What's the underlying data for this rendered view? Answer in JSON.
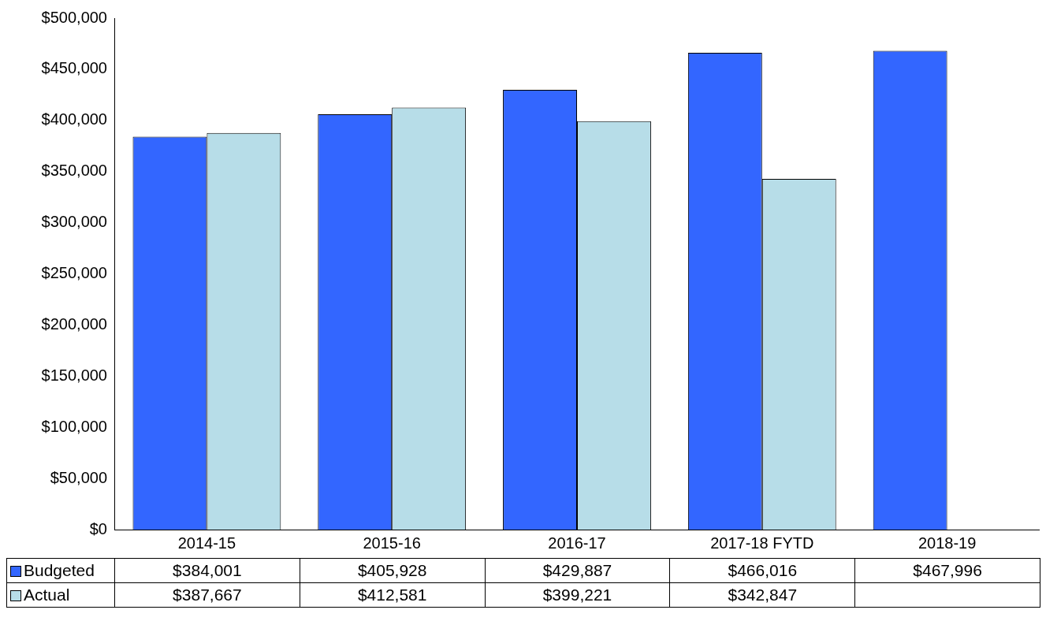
{
  "chart_data": {
    "type": "bar",
    "categories": [
      "2014-15",
      "2015-16",
      "2016-17",
      "2017-18 FYTD",
      "2018-19"
    ],
    "series": [
      {
        "name": "Budgeted",
        "color": "#3366ff",
        "values": [
          384001,
          405928,
          429887,
          466016,
          467996
        ],
        "value_labels": [
          "$384,001",
          "$405,928",
          "$429,887",
          "$466,016",
          "$467,996"
        ]
      },
      {
        "name": "Actual",
        "color": "#b7dde8",
        "values": [
          387667,
          412581,
          399221,
          342847,
          null
        ],
        "value_labels": [
          "$387,667",
          "$412,581",
          "$399,221",
          "$342,847",
          null
        ]
      }
    ],
    "ylim": [
      0,
      500000
    ],
    "yticks": [
      {
        "value": 0,
        "label": "$0"
      },
      {
        "value": 50000,
        "label": "$50,000"
      },
      {
        "value": 100000,
        "label": "$100,000"
      },
      {
        "value": 150000,
        "label": "$150,000"
      },
      {
        "value": 200000,
        "label": "$200,000"
      },
      {
        "value": 250000,
        "label": "$250,000"
      },
      {
        "value": 300000,
        "label": "$300,000"
      },
      {
        "value": 350000,
        "label": "$350,000"
      },
      {
        "value": 400000,
        "label": "$400,000"
      },
      {
        "value": 450000,
        "label": "$450,000"
      },
      {
        "value": 500000,
        "label": "$500,000"
      }
    ],
    "grid": false,
    "legend": "bottom"
  }
}
